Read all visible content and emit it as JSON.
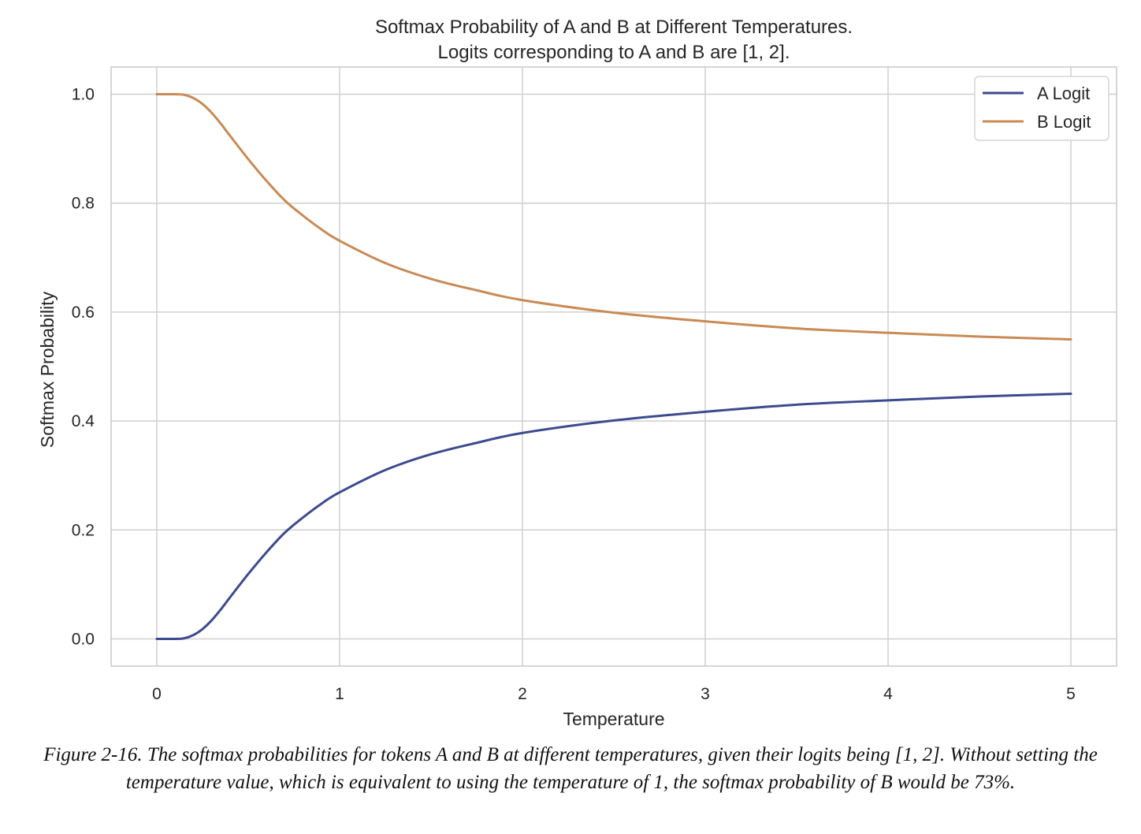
{
  "chart_data": {
    "type": "line",
    "title": "Softmax Probability of A and B at Different Temperatures.",
    "subtitle": "Logits corresponding to A and B are [1, 2].",
    "xlabel": "Temperature",
    "ylabel": "Softmax Probability",
    "xlim": [
      -0.25,
      5.25
    ],
    "ylim": [
      -0.05,
      1.05
    ],
    "xticks": [
      0,
      1,
      2,
      3,
      4,
      5
    ],
    "xtick_labels": [
      "0",
      "1",
      "2",
      "3",
      "4",
      "5"
    ],
    "yticks": [
      0.0,
      0.2,
      0.4,
      0.6,
      0.8,
      1.0
    ],
    "ytick_labels": [
      "0.0",
      "0.2",
      "0.4",
      "0.6",
      "0.8",
      "1.0"
    ],
    "grid": true,
    "legend_position": "top-right",
    "series": [
      {
        "name": "A Logit",
        "color": "#3c4a8f",
        "x": [
          0,
          0.1,
          0.15,
          0.2,
          0.25,
          0.3,
          0.35,
          0.4,
          0.5,
          0.6,
          0.7,
          0.8,
          0.9,
          1.0,
          1.25,
          1.5,
          1.75,
          2.0,
          2.5,
          3.0,
          3.5,
          4.0,
          4.5,
          5.0
        ],
        "values": [
          0.0,
          0.0,
          0.001,
          0.007,
          0.018,
          0.034,
          0.054,
          0.076,
          0.119,
          0.159,
          0.195,
          0.223,
          0.248,
          0.269,
          0.31,
          0.339,
          0.36,
          0.378,
          0.401,
          0.417,
          0.43,
          0.438,
          0.445,
          0.45
        ]
      },
      {
        "name": "B Logit",
        "color": "#c98a55",
        "x": [
          0,
          0.1,
          0.15,
          0.2,
          0.25,
          0.3,
          0.35,
          0.4,
          0.5,
          0.6,
          0.7,
          0.8,
          0.9,
          1.0,
          1.25,
          1.5,
          1.75,
          2.0,
          2.5,
          3.0,
          3.5,
          4.0,
          4.5,
          5.0
        ],
        "values": [
          1.0,
          1.0,
          0.999,
          0.993,
          0.982,
          0.966,
          0.946,
          0.924,
          0.881,
          0.841,
          0.805,
          0.777,
          0.752,
          0.731,
          0.69,
          0.661,
          0.64,
          0.622,
          0.599,
          0.583,
          0.57,
          0.562,
          0.555,
          0.55
        ]
      }
    ]
  },
  "caption": "Figure 2-16. The softmax probabilities for tokens A and B at different temperatures, given their logits being [1, 2]. Without setting the temperature value, which is equivalent to using the temperature of 1, the softmax probability of B would be 73%."
}
